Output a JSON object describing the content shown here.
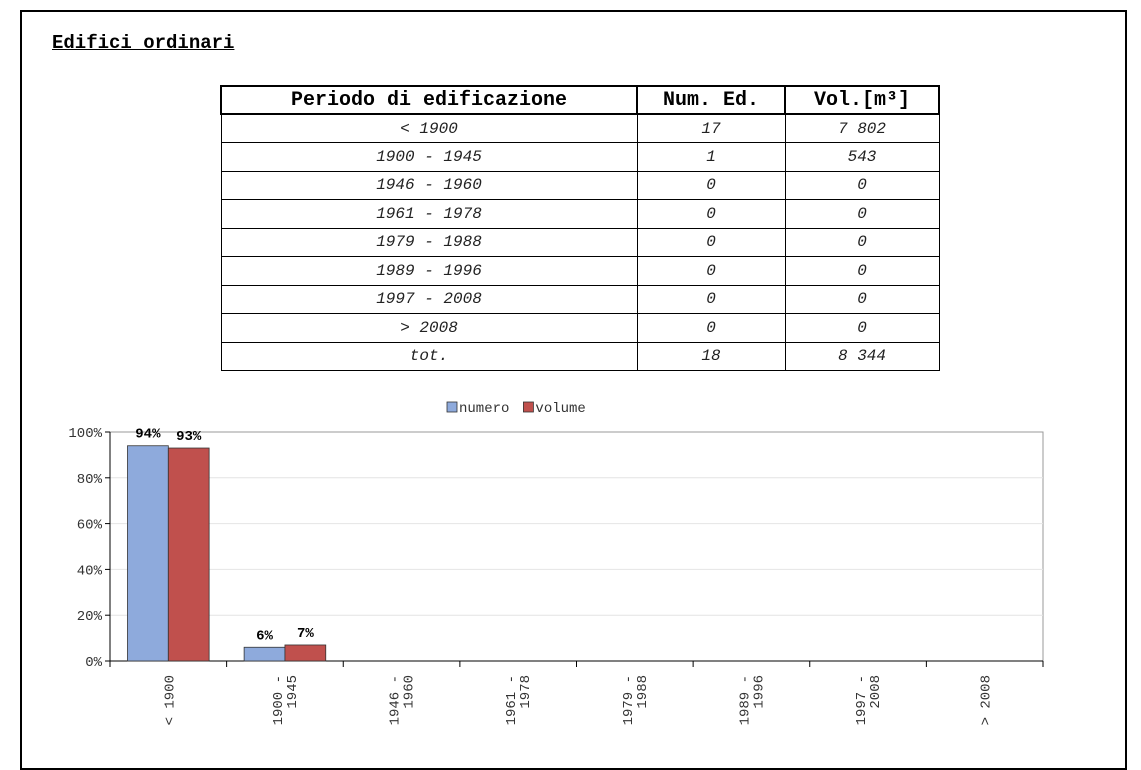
{
  "title": "Edifici ordinari",
  "table": {
    "header": [
      "Periodo di edificazione",
      "Num. Ed.",
      "Vol.[m³]"
    ],
    "rows": [
      [
        "< 1900",
        "17",
        "7 802"
      ],
      [
        "1900 - 1945",
        "1",
        "543"
      ],
      [
        "1946 - 1960",
        "0",
        "0"
      ],
      [
        "1961 - 1978",
        "0",
        "0"
      ],
      [
        "1979 - 1988",
        "0",
        "0"
      ],
      [
        "1989 - 1996",
        "0",
        "0"
      ],
      [
        "1997 - 2008",
        "0",
        "0"
      ],
      [
        "> 2008",
        "0",
        "0"
      ],
      [
        "tot.",
        "18",
        "8 344"
      ]
    ]
  },
  "chart_data": {
    "type": "bar",
    "categories": [
      "< 1900",
      "1900 - 1945",
      "1946 - 1960",
      "1961 - 1978",
      "1979 - 1988",
      "1989 - 1996",
      "1997 - 2008",
      "> 2008"
    ],
    "series": [
      {
        "name": "numero",
        "color": "#8eaadc",
        "values": [
          94,
          6,
          0,
          0,
          0,
          0,
          0,
          0
        ],
        "value_labels": [
          "94%",
          "6%",
          null,
          null,
          null,
          null,
          null,
          null
        ]
      },
      {
        "name": "volume",
        "color": "#c0504d",
        "values": [
          93,
          7,
          0,
          0,
          0,
          0,
          0,
          0
        ],
        "value_labels": [
          "93%",
          "7%",
          null,
          null,
          null,
          null,
          null,
          null
        ]
      }
    ],
    "ylim": [
      0,
      100
    ],
    "yticks": [
      {
        "value": 0,
        "label": "0%"
      },
      {
        "value": 20,
        "label": "20%"
      },
      {
        "value": 40,
        "label": "40%"
      },
      {
        "value": 60,
        "label": "60%"
      },
      {
        "value": 80,
        "label": "80%"
      },
      {
        "value": 100,
        "label": "100%"
      }
    ],
    "grid": true,
    "legend": "top"
  }
}
